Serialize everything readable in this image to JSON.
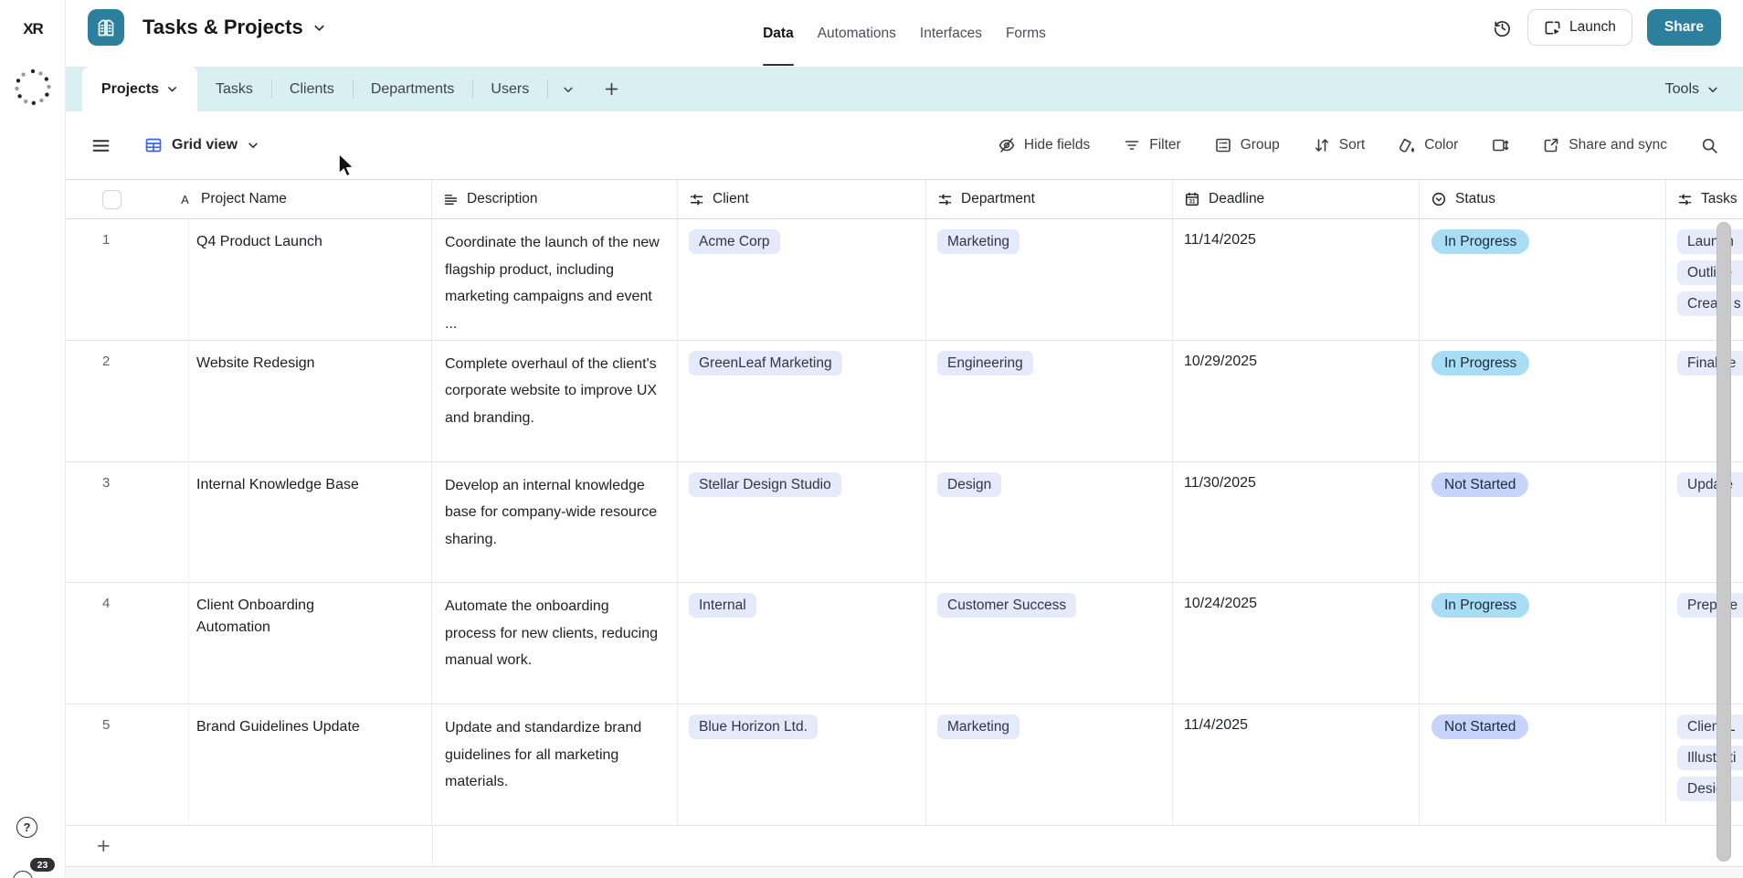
{
  "brand": {
    "logo_text": "XR"
  },
  "app_header": {
    "base_title": "Tasks & Projects",
    "nav": [
      {
        "label": "Data",
        "active": true
      },
      {
        "label": "Automations",
        "active": false
      },
      {
        "label": "Interfaces",
        "active": false
      },
      {
        "label": "Forms",
        "active": false
      }
    ],
    "launch_label": "Launch",
    "share_label": "Share"
  },
  "tab_bar": {
    "active_tab": "Projects",
    "tabs": [
      "Tasks",
      "Clients",
      "Departments",
      "Users"
    ],
    "tools_label": "Tools"
  },
  "toolbar": {
    "view_name": "Grid view",
    "buttons": [
      {
        "label": "Hide fields",
        "icon": "hide-fields-icon"
      },
      {
        "label": "Filter",
        "icon": "filter-icon"
      },
      {
        "label": "Group",
        "icon": "group-icon"
      },
      {
        "label": "Sort",
        "icon": "sort-icon"
      },
      {
        "label": "Color",
        "icon": "color-icon"
      },
      {
        "label": "",
        "icon": "row-height-icon"
      },
      {
        "label": "Share and sync",
        "icon": "share-sync-icon"
      },
      {
        "label": "",
        "icon": "search-icon"
      }
    ]
  },
  "table": {
    "columns": [
      {
        "label": "Project Name",
        "icon": "text-field-icon"
      },
      {
        "label": "Description",
        "icon": "long-text-field-icon"
      },
      {
        "label": "Client",
        "icon": "linked-record-field-icon"
      },
      {
        "label": "Department",
        "icon": "linked-record-field-icon"
      },
      {
        "label": "Deadline",
        "icon": "date-field-icon"
      },
      {
        "label": "Status",
        "icon": "select-field-icon"
      },
      {
        "label": "Tasks",
        "icon": "linked-record-field-icon"
      }
    ],
    "rows": [
      {
        "num": "1",
        "name": "Q4 Product Launch",
        "description": "Coordinate the launch of the new flagship product, including marketing campaigns and event ...",
        "client": "Acme Corp",
        "department": "Marketing",
        "deadline": "11/14/2025",
        "status": "In Progress",
        "tasks": [
          "Launch",
          "Outline",
          "Create s"
        ]
      },
      {
        "num": "2",
        "name": "Website Redesign",
        "description": "Complete overhaul of the client's corporate website to improve UX and branding.",
        "client": "GreenLeaf Marketing",
        "department": "Engineering",
        "deadline": "10/29/2025",
        "status": "In Progress",
        "tasks": [
          "Finalize"
        ]
      },
      {
        "num": "3",
        "name": "Internal Knowledge Base",
        "description": "Develop an internal knowledge base for company-wide resource sharing.",
        "client": "Stellar Design Studio",
        "department": "Design",
        "deadline": "11/30/2025",
        "status": "Not Started",
        "tasks": [
          "Update"
        ]
      },
      {
        "num": "4",
        "name": "Client Onboarding Automation",
        "description": "Automate the onboarding process for new clients, reducing manual work.",
        "client": "Internal",
        "department": "Customer Success",
        "deadline": "10/24/2025",
        "status": "In Progress",
        "tasks": [
          "Prepare"
        ]
      },
      {
        "num": "5",
        "name": "Brand Guidelines Update",
        "description": "Update and standardize brand guidelines for all marketing materials.",
        "client": "Blue Horizon Ltd.",
        "department": "Marketing",
        "deadline": "11/4/2025",
        "status": "Not Started",
        "tasks": [
          "Client L",
          "Illustrati",
          "Design"
        ]
      }
    ],
    "status_colors": {
      "In Progress": "#a8ddf6",
      "Not Started": "#c6d3fa"
    }
  },
  "footer": {
    "add_row_label": "+",
    "help_label": "?",
    "notification_count": "23"
  },
  "colors": {
    "accent_teal": "#2d7f9e",
    "tab_bar_bg": "#d9f0f2",
    "pill_light": "#e5e9fa",
    "status_in_progress": "#a8ddf6",
    "status_not_started": "#c6d3fa"
  }
}
